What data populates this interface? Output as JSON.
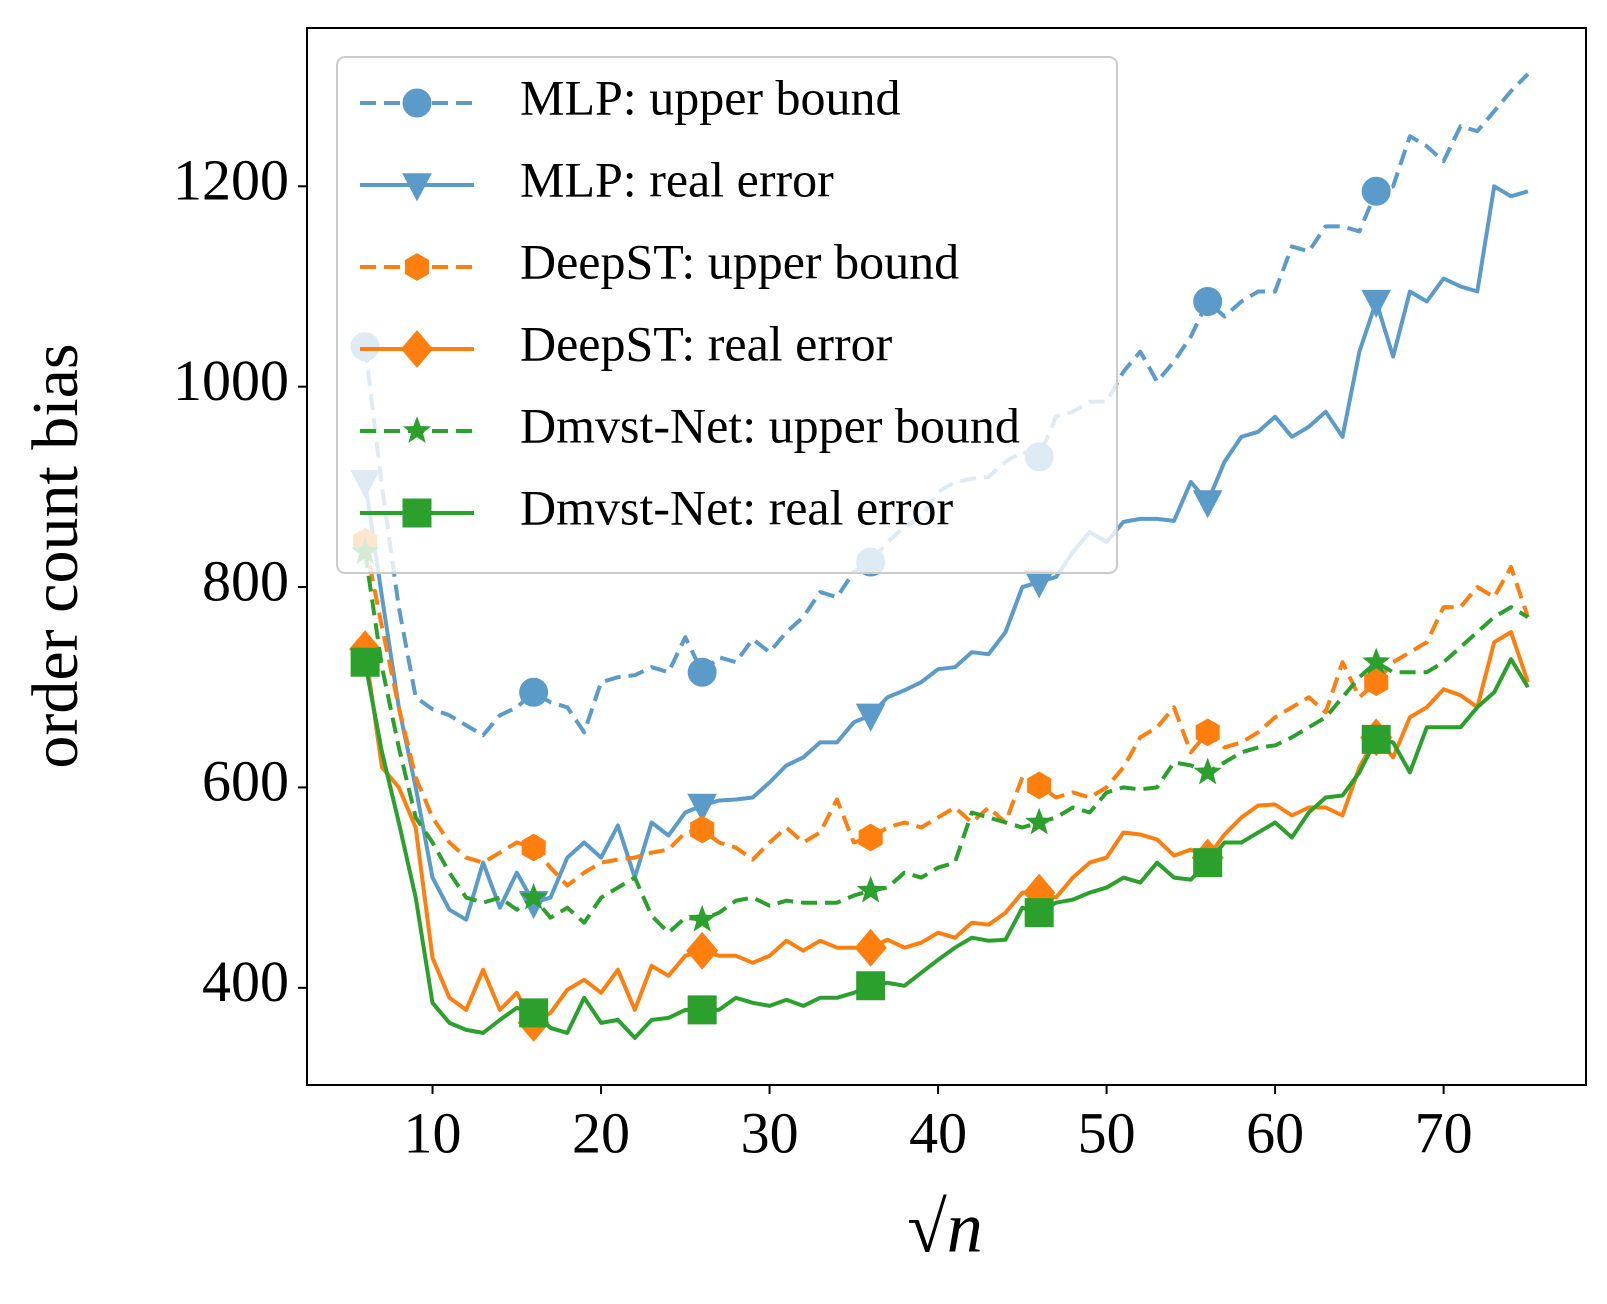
{
  "chart_data": {
    "type": "line",
    "xlabel": "√n",
    "ylabel": "order count bias",
    "x": [
      6,
      7,
      8,
      9,
      10,
      11,
      12,
      13,
      14,
      15,
      16,
      17,
      18,
      19,
      20,
      21,
      22,
      23,
      24,
      25,
      26,
      27,
      28,
      29,
      30,
      31,
      32,
      33,
      34,
      35,
      36,
      37,
      38,
      39,
      40,
      41,
      42,
      43,
      44,
      45,
      46,
      47,
      48,
      49,
      50,
      51,
      52,
      53,
      54,
      55,
      56,
      57,
      58,
      59,
      60,
      61,
      62,
      63,
      64,
      65,
      66,
      67,
      68,
      69,
      70,
      71,
      72,
      73,
      74,
      75
    ],
    "xlim": [
      2.55,
      78.45
    ],
    "xticks": [
      10,
      20,
      30,
      40,
      50,
      60,
      70
    ],
    "ylim": [
      303,
      1358
    ],
    "yticks": [
      400,
      600,
      800,
      1000,
      1200
    ],
    "grid": false,
    "legend": "upper left",
    "marker_every": 10,
    "series": [
      {
        "name": "MLP: upper bound",
        "color": "#5b9bc9",
        "dashed": true,
        "marker": "circle",
        "values": [
          1040,
          900,
          780,
          690,
          678,
          672,
          662,
          652,
          672,
          680,
          695,
          685,
          680,
          655,
          705,
          710,
          712,
          720,
          715,
          750,
          715,
          730,
          725,
          748,
          735,
          755,
          770,
          795,
          790,
          815,
          825,
          845,
          860,
          870,
          895,
          905,
          908,
          910,
          925,
          935,
          930,
          970,
          975,
          985,
          985,
          1015,
          1035,
          1005,
          1025,
          1050,
          1085,
          1070,
          1085,
          1095,
          1095,
          1140,
          1135,
          1160,
          1160,
          1155,
          1195,
          1200,
          1250,
          1240,
          1225,
          1260,
          1255,
          1275,
          1295,
          1312
        ]
      },
      {
        "name": "MLP: real error",
        "color": "#5b9bc9",
        "dashed": false,
        "marker": "triangle-down",
        "values": [
          905,
          790,
          680,
          600,
          510,
          478,
          468,
          525,
          480,
          515,
          485,
          490,
          530,
          545,
          530,
          562,
          510,
          565,
          552,
          575,
          582,
          587,
          588,
          590,
          605,
          622,
          630,
          645,
          645,
          665,
          672,
          690,
          697,
          705,
          718,
          720,
          735,
          733,
          755,
          800,
          805,
          810,
          835,
          855,
          845,
          865,
          868,
          868,
          866,
          905,
          885,
          925,
          950,
          955,
          970,
          950,
          960,
          975,
          950,
          1035,
          1085,
          1030,
          1095,
          1085,
          1108,
          1100,
          1095,
          1200,
          1190,
          1195
        ]
      },
      {
        "name": "DeepST: upper bound",
        "color": "#ff7f0e",
        "dashed": true,
        "marker": "hexagon",
        "values": [
          845,
          760,
          680,
          610,
          570,
          545,
          530,
          525,
          535,
          545,
          540,
          520,
          502,
          515,
          525,
          528,
          530,
          535,
          538,
          555,
          558,
          545,
          540,
          528,
          545,
          560,
          545,
          555,
          588,
          545,
          550,
          560,
          565,
          560,
          570,
          580,
          565,
          580,
          565,
          610,
          602,
          590,
          595,
          590,
          600,
          620,
          650,
          660,
          680,
          635,
          655,
          640,
          645,
          655,
          670,
          680,
          690,
          675,
          725,
          690,
          705,
          725,
          735,
          745,
          780,
          780,
          800,
          790,
          820,
          770
        ]
      },
      {
        "name": "DeepST: real error",
        "color": "#ff7f0e",
        "dashed": false,
        "marker": "diamond",
        "values": [
          738,
          620,
          600,
          560,
          430,
          390,
          378,
          418,
          378,
          395,
          365,
          375,
          398,
          408,
          395,
          418,
          378,
          422,
          412,
          432,
          437,
          432,
          432,
          425,
          432,
          447,
          437,
          447,
          440,
          440,
          440,
          448,
          440,
          445,
          455,
          450,
          465,
          463,
          475,
          495,
          495,
          490,
          510,
          525,
          530,
          555,
          553,
          548,
          532,
          538,
          530,
          553,
          570,
          582,
          583,
          572,
          580,
          580,
          572,
          620,
          650,
          630,
          670,
          680,
          698,
          692,
          680,
          745,
          755,
          705
        ]
      },
      {
        "name": "Dmvst-Net: upper bound",
        "color": "#2ca02c",
        "dashed": true,
        "marker": "star",
        "values": [
          835,
          720,
          640,
          570,
          545,
          515,
          490,
          485,
          490,
          478,
          490,
          470,
          480,
          465,
          490,
          500,
          510,
          472,
          455,
          470,
          468,
          475,
          487,
          490,
          482,
          487,
          485,
          485,
          485,
          492,
          497,
          500,
          515,
          510,
          520,
          525,
          575,
          570,
          565,
          560,
          565,
          570,
          580,
          575,
          595,
          600,
          598,
          600,
          625,
          622,
          615,
          625,
          635,
          640,
          642,
          650,
          660,
          670,
          690,
          710,
          725,
          715,
          715,
          715,
          725,
          740,
          755,
          770,
          780,
          770
        ]
      },
      {
        "name": "Dmvst-Net: real error",
        "color": "#2ca02c",
        "dashed": false,
        "marker": "square",
        "values": [
          725,
          635,
          565,
          490,
          385,
          365,
          358,
          355,
          368,
          380,
          375,
          360,
          355,
          390,
          365,
          368,
          350,
          368,
          370,
          378,
          378,
          378,
          390,
          385,
          382,
          388,
          382,
          390,
          390,
          395,
          402,
          405,
          402,
          415,
          428,
          440,
          450,
          447,
          448,
          480,
          475,
          485,
          488,
          495,
          500,
          510,
          505,
          525,
          510,
          508,
          525,
          545,
          545,
          555,
          565,
          550,
          575,
          590,
          592,
          615,
          648,
          645,
          615,
          660,
          660,
          660,
          680,
          695,
          728,
          700
        ]
      }
    ]
  }
}
